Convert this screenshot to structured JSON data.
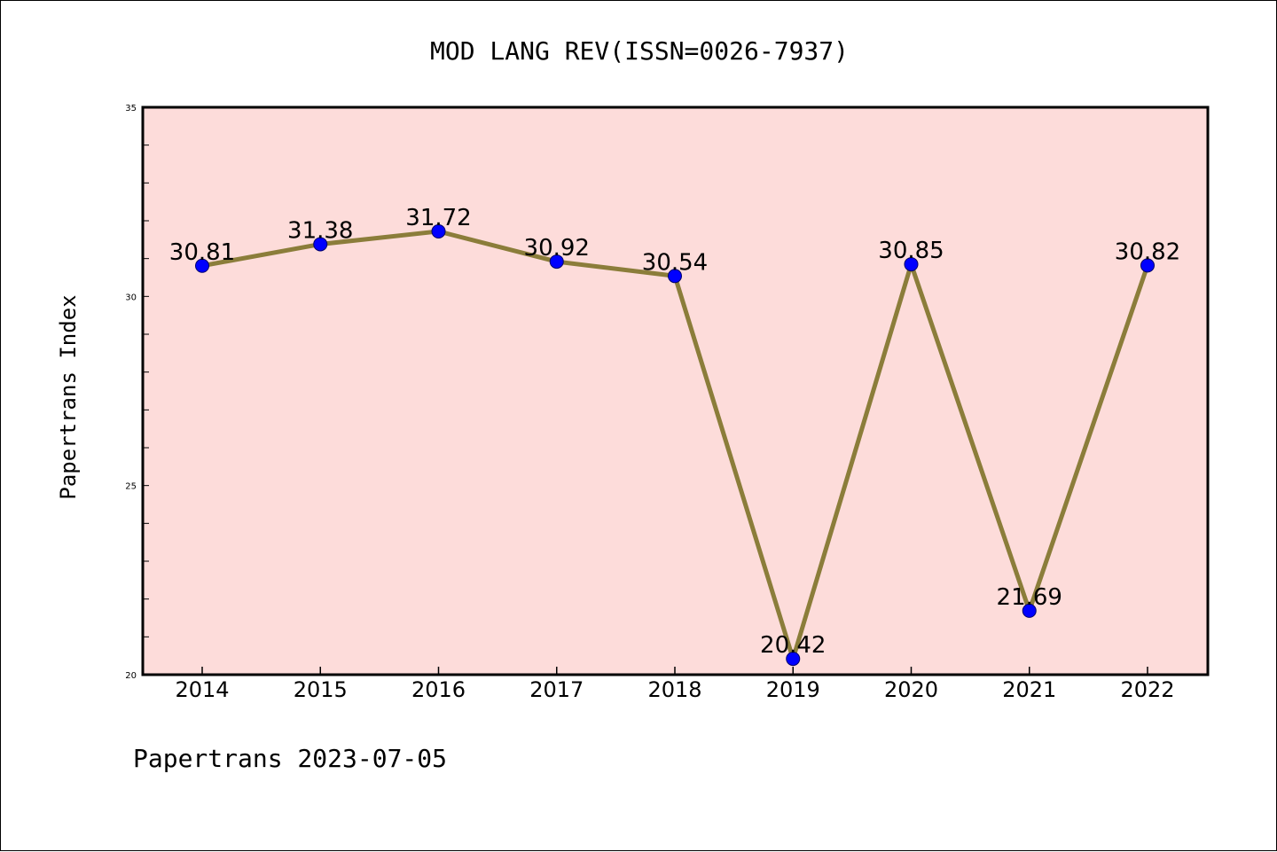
{
  "chart_data": {
    "type": "line",
    "title": "MOD LANG REV(ISSN=0026-7937)",
    "ylabel": "Papertrans Index",
    "xlabel": "",
    "footer": "Papertrans 2023-07-05",
    "categories": [
      "2014",
      "2015",
      "2016",
      "2017",
      "2018",
      "2019",
      "2020",
      "2021",
      "2022"
    ],
    "series": [
      {
        "values": [
          30.81,
          31.38,
          31.72,
          30.92,
          30.54,
          20.42,
          30.85,
          21.69,
          30.82
        ],
        "labels": [
          "30.81",
          "31.38",
          "31.72",
          "30.92",
          "30.54",
          "20.42",
          "30.85",
          "21.69",
          "30.82"
        ]
      }
    ],
    "ylim": [
      20,
      35
    ],
    "yticks": [
      20,
      25,
      30,
      35
    ],
    "ytick_labels": [
      "20",
      "25",
      "30",
      "35"
    ],
    "grid": false,
    "colors": {
      "plot_background": "#fddcda",
      "line": "#8b7d3a",
      "marker": "#0000ff"
    }
  }
}
